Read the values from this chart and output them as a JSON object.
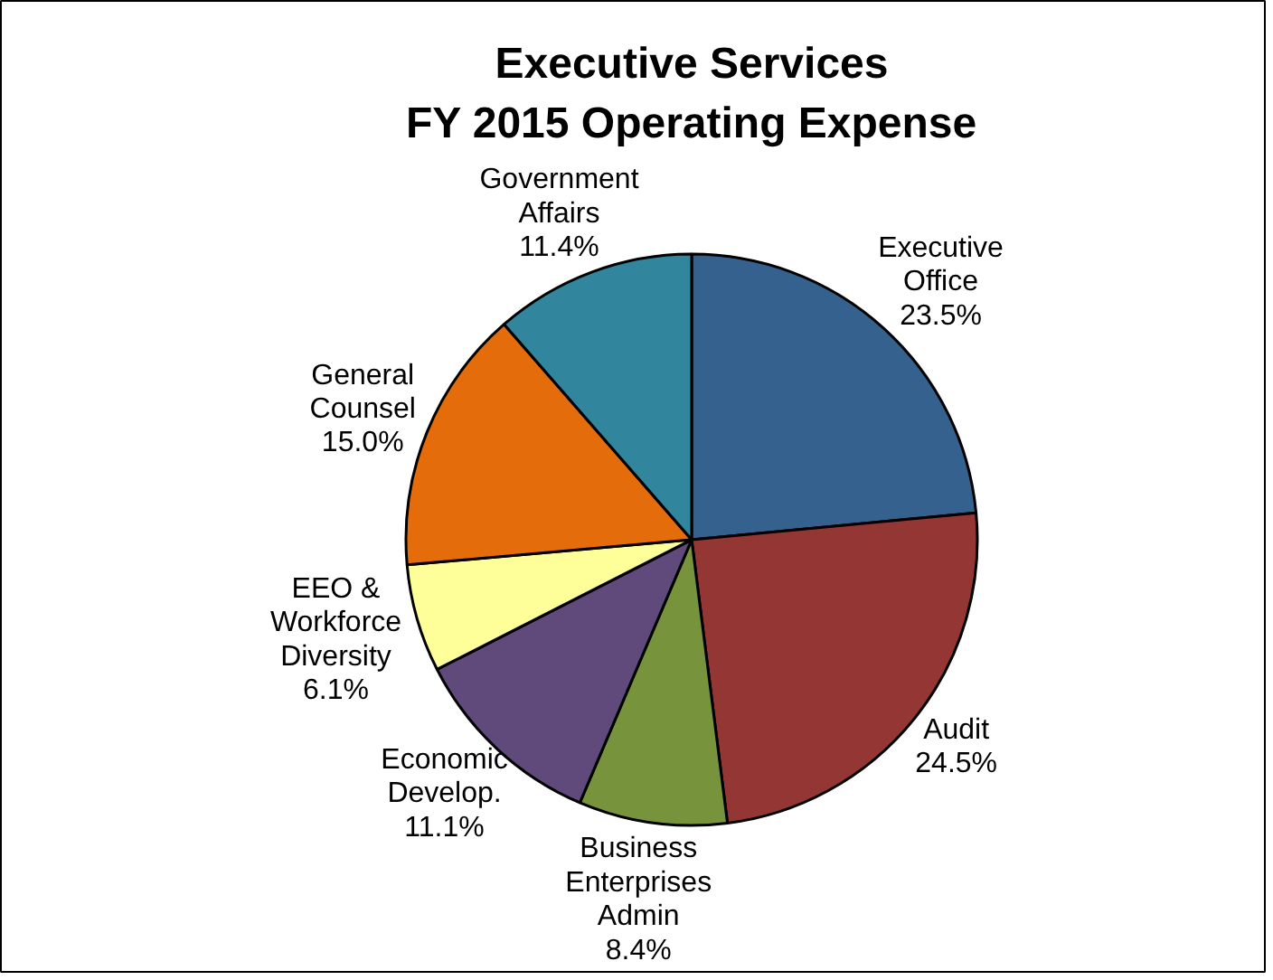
{
  "chart_data": {
    "type": "pie",
    "title": "Executive Services",
    "subtitle": "FY 2015 Operating Expense",
    "categories": [
      "Executive\nOffice",
      "Audit",
      "Business\nEnterprises\nAdmin",
      "Economic\nDevelop.",
      "EEO &\nWorkforce\nDiversity",
      "General\nCounsel",
      "Government\nAffairs"
    ],
    "values": [
      23.5,
      24.5,
      8.4,
      11.1,
      6.1,
      15.0,
      11.4
    ],
    "colors": [
      "#35618f",
      "#943634",
      "#77933c",
      "#604a7b",
      "#ffff99",
      "#e46c0a",
      "#31859c"
    ],
    "value_labels": [
      "23.5%",
      "24.5%",
      "8.4%",
      "11.1%",
      "6.1%",
      "15.0%",
      "11.4%"
    ]
  }
}
